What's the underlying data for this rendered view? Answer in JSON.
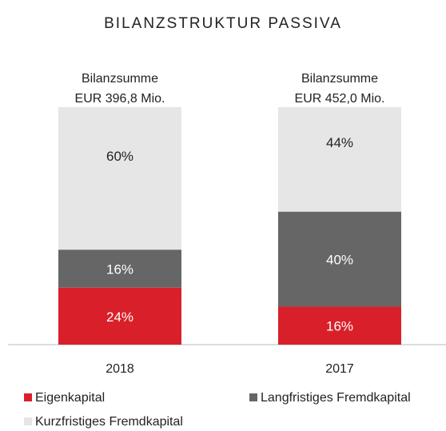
{
  "chart_data": {
    "type": "stacked-bar",
    "title": "BILANZSTRUKTUR PASSIVA",
    "categories": [
      "2018",
      "2017"
    ],
    "annotations": [
      [
        "Bilanzsumme",
        "EUR 396,8 Mio."
      ],
      [
        "Bilanzsumme",
        "EUR 452,0 Mio."
      ]
    ],
    "series": [
      {
        "name": "Eigenkapital",
        "color": "#d9202a",
        "values": [
          24,
          16
        ],
        "value_labels": [
          "24%",
          "16%"
        ]
      },
      {
        "name": "Langfristiges Fremdkapital",
        "color": "#666666",
        "values": [
          16,
          40
        ],
        "value_labels": [
          "16%",
          "40%"
        ]
      },
      {
        "name": "Kurzfristiges Fremdkapital",
        "color": "#e6e6e6",
        "values": [
          60,
          44
        ],
        "value_labels": [
          "60%",
          "44%"
        ]
      }
    ],
    "ylim": [
      0,
      100
    ]
  }
}
